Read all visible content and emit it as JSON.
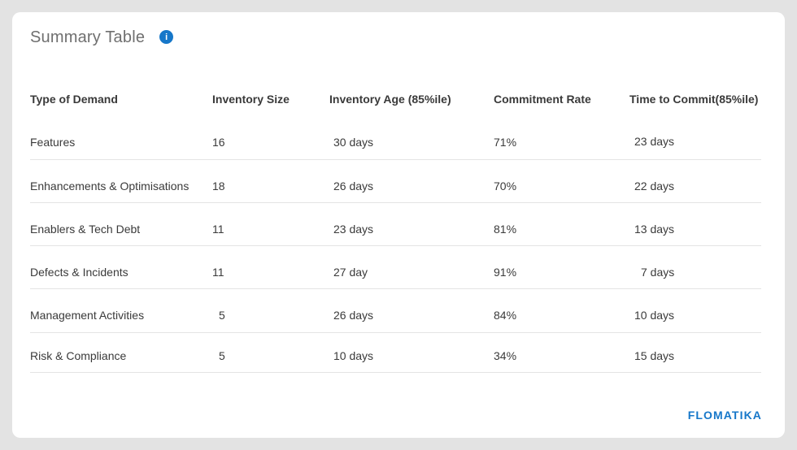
{
  "summary": {
    "title": "Summary Table",
    "info_icon": "info-icon"
  },
  "table": {
    "headers": [
      "Type of Demand",
      "Inventory Size",
      "Inventory Age (85%ile)",
      "Commitment Rate",
      "Time to Commit(85%ile)"
    ],
    "rows": [
      {
        "type": "Features",
        "size": "16",
        "age": "30 days",
        "rate": "71%",
        "commit": "23 days"
      },
      {
        "type": "Enhancements & Optimisations",
        "size": "18",
        "age": "26 days",
        "rate": "70%",
        "commit": "22 days"
      },
      {
        "type": "Enablers & Tech Debt",
        "size": "11",
        "age": "23 days",
        "rate": "81%",
        "commit": "13 days"
      },
      {
        "type": "Defects & Incidents",
        "size": "11",
        "age": "27 day",
        "rate": "91%",
        "commit": "7 days"
      },
      {
        "type": "Management Activities",
        "size": "5",
        "age": "26 days",
        "rate": "84%",
        "commit": "10 days"
      },
      {
        "type": "Risk & Compliance",
        "size": "5",
        "age": "10 days",
        "rate": "34%",
        "commit": "15 days"
      }
    ]
  },
  "brand": {
    "logo_text": "FLOMATIKA",
    "accent_color": "#1677c9"
  }
}
